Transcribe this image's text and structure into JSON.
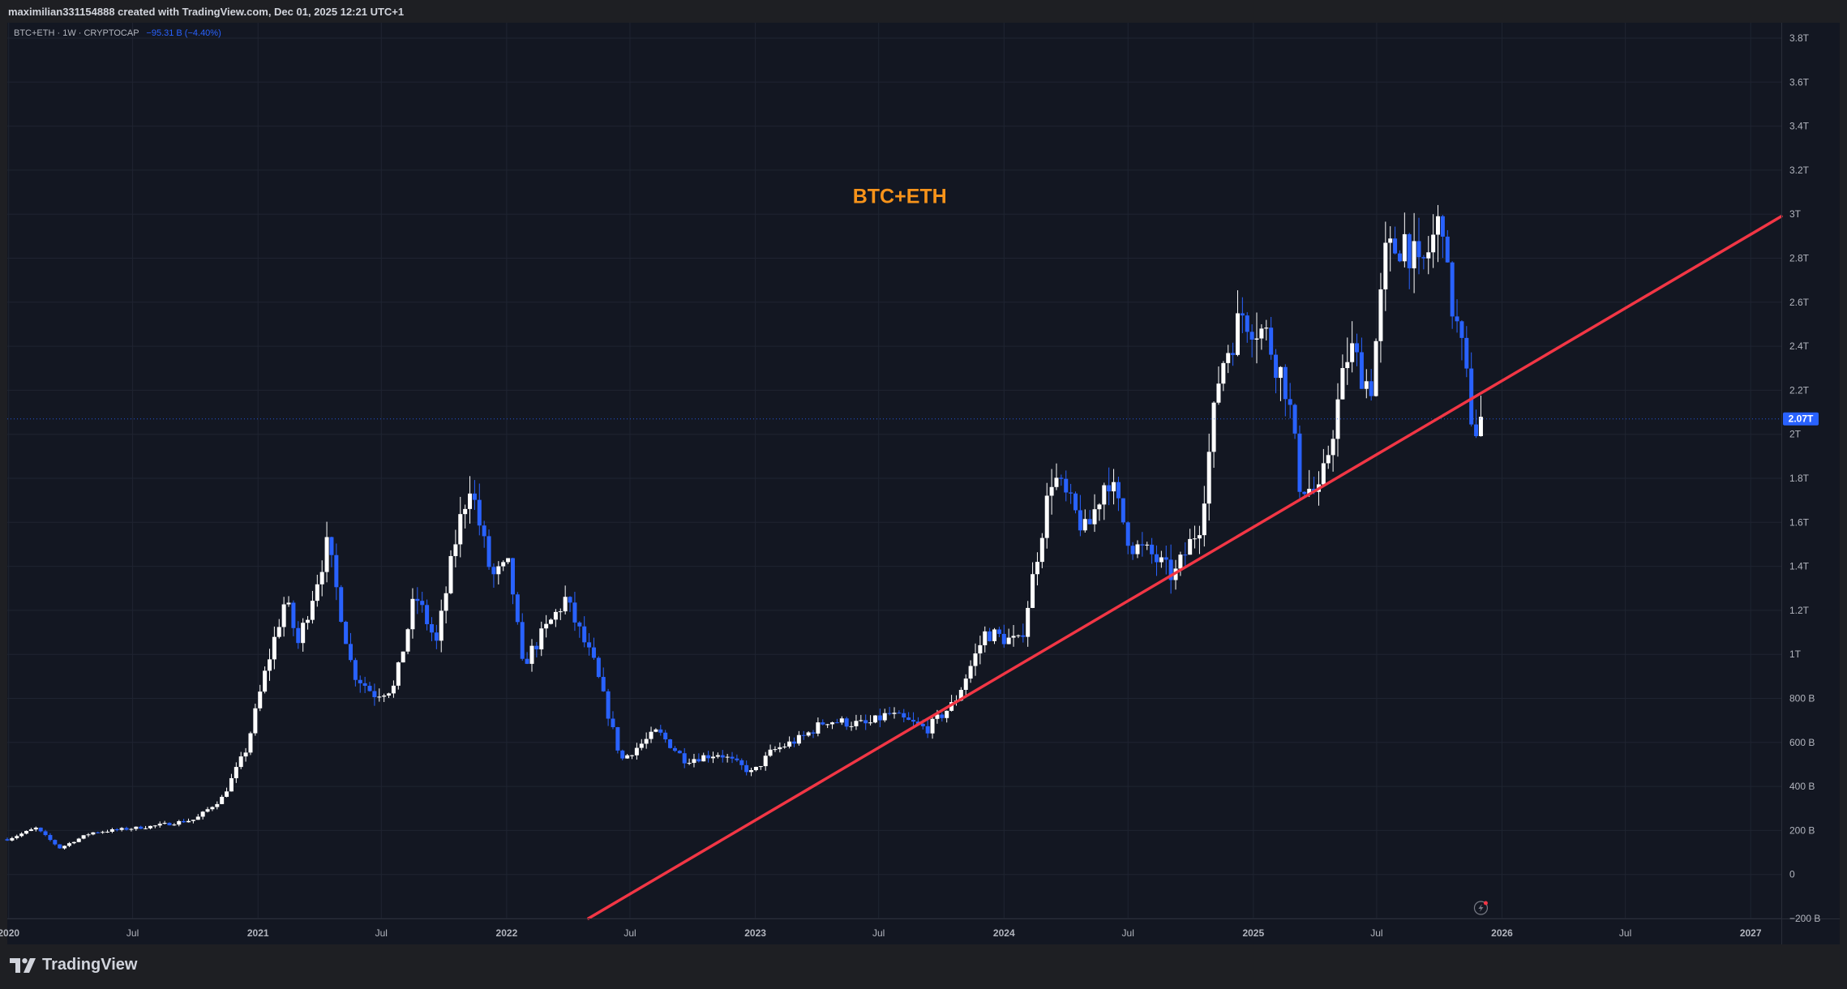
{
  "attribution": "maximilian331154888 created with TradingView.com, Dec 01, 2025 12:21 UTC+1",
  "legend": {
    "symbol": "BTC+ETH · 1W · CRYPTOCAP",
    "change": "−95.31 B (−4.40%)"
  },
  "brand": {
    "name": "TradingView"
  },
  "colors": {
    "background": "#131722",
    "frame": "#1e1f23",
    "grid": "#1f2431",
    "up": "#ffffff",
    "down": "#2962ff",
    "trendline": "#f23645",
    "annotation": "#f7931a",
    "price_tag": "#2962ff"
  },
  "chart_data": {
    "type": "candlestick",
    "title": "BTC+ETH",
    "interval": "1W",
    "source": "CRYPTOCAP",
    "y_unit": "USD",
    "ylim": [
      -200000000000.0,
      3870000000000.0
    ],
    "xlim": [
      "2019-12-30",
      "2027-02-15"
    ],
    "y_ticks": [
      {
        "value": -200000000000.0,
        "label": "−200 B"
      },
      {
        "value": 0,
        "label": "0"
      },
      {
        "value": 200000000000.0,
        "label": "200 B"
      },
      {
        "value": 400000000000.0,
        "label": "400 B"
      },
      {
        "value": 600000000000.0,
        "label": "600 B"
      },
      {
        "value": 800000000000.0,
        "label": "800 B"
      },
      {
        "value": 1000000000000.0,
        "label": "1T"
      },
      {
        "value": 1200000000000.0,
        "label": "1.2T"
      },
      {
        "value": 1400000000000.0,
        "label": "1.4T"
      },
      {
        "value": 1600000000000.0,
        "label": "1.6T"
      },
      {
        "value": 1800000000000.0,
        "label": "1.8T"
      },
      {
        "value": 2000000000000.0,
        "label": "2T"
      },
      {
        "value": 2200000000000.0,
        "label": "2.2T"
      },
      {
        "value": 2400000000000.0,
        "label": "2.4T"
      },
      {
        "value": 2600000000000.0,
        "label": "2.6T"
      },
      {
        "value": 2800000000000.0,
        "label": "2.8T"
      },
      {
        "value": 3000000000000.0,
        "label": "3T"
      },
      {
        "value": 3200000000000.0,
        "label": "3.2T"
      },
      {
        "value": 3400000000000.0,
        "label": "3.4T"
      },
      {
        "value": 3600000000000.0,
        "label": "3.6T"
      },
      {
        "value": 3800000000000.0,
        "label": "3.8T"
      }
    ],
    "x_ticks": [
      {
        "date": "2020-01-01",
        "label": "2020",
        "major": true
      },
      {
        "date": "2020-07-01",
        "label": "Jul",
        "major": false
      },
      {
        "date": "2021-01-01",
        "label": "2021",
        "major": true
      },
      {
        "date": "2021-07-01",
        "label": "Jul",
        "major": false
      },
      {
        "date": "2022-01-01",
        "label": "2022",
        "major": true
      },
      {
        "date": "2022-07-01",
        "label": "Jul",
        "major": false
      },
      {
        "date": "2023-01-01",
        "label": "2023",
        "major": true
      },
      {
        "date": "2023-07-01",
        "label": "Jul",
        "major": false
      },
      {
        "date": "2024-01-01",
        "label": "2024",
        "major": true
      },
      {
        "date": "2024-07-01",
        "label": "Jul",
        "major": false
      },
      {
        "date": "2025-01-01",
        "label": "2025",
        "major": true
      },
      {
        "date": "2025-07-01",
        "label": "Jul",
        "major": false
      },
      {
        "date": "2026-01-01",
        "label": "2026",
        "major": true
      },
      {
        "date": "2026-07-01",
        "label": "Jul",
        "major": false
      },
      {
        "date": "2027-01-01",
        "label": "2027",
        "major": true
      }
    ],
    "last_price": {
      "value": 2070000000000.0,
      "label": "2.07T"
    },
    "annotation": {
      "text": "BTC+ETH",
      "date": "2023-08-01",
      "value": 3050000000000.0
    },
    "trendline": {
      "from": {
        "date": "2022-05-01",
        "value": -200000000000.0
      },
      "to": {
        "date": "2027-02-15",
        "value": 2990000000000.0
      }
    },
    "close_path": [
      [
        "2019-12-30",
        160000000000.0
      ],
      [
        "2020-02-10",
        210000000000.0
      ],
      [
        "2020-03-16",
        120000000000.0
      ],
      [
        "2020-05-01",
        190000000000.0
      ],
      [
        "2020-08-01",
        220000000000.0
      ],
      [
        "2020-10-01",
        250000000000.0
      ],
      [
        "2020-11-10",
        350000000000.0
      ],
      [
        "2020-12-15",
        570000000000.0
      ],
      [
        "2021-01-10",
        900000000000.0
      ],
      [
        "2021-02-10",
        1250000000000.0
      ],
      [
        "2021-03-01",
        1050000000000.0
      ],
      [
        "2021-04-13",
        1500000000000.0
      ],
      [
        "2021-05-20",
        920000000000.0
      ],
      [
        "2021-06-20",
        820000000000.0
      ],
      [
        "2021-07-20",
        850000000000.0
      ],
      [
        "2021-08-20",
        1270000000000.0
      ],
      [
        "2021-09-20",
        1050000000000.0
      ],
      [
        "2021-10-20",
        1550000000000.0
      ],
      [
        "2021-11-08",
        1780000000000.0
      ],
      [
        "2021-12-10",
        1350000000000.0
      ],
      [
        "2022-01-05",
        1400000000000.0
      ],
      [
        "2022-01-24",
        950000000000.0
      ],
      [
        "2022-03-28",
        1250000000000.0
      ],
      [
        "2022-05-10",
        950000000000.0
      ],
      [
        "2022-06-18",
        520000000000.0
      ],
      [
        "2022-08-10",
        650000000000.0
      ],
      [
        "2022-09-20",
        520000000000.0
      ],
      [
        "2022-11-09",
        550000000000.0
      ],
      [
        "2022-12-28",
        460000000000.0
      ],
      [
        "2023-01-25",
        560000000000.0
      ],
      [
        "2023-03-10",
        620000000000.0
      ],
      [
        "2023-04-15",
        700000000000.0
      ],
      [
        "2023-06-15",
        680000000000.0
      ],
      [
        "2023-07-15",
        730000000000.0
      ],
      [
        "2023-09-10",
        660000000000.0
      ],
      [
        "2023-10-20",
        780000000000.0
      ],
      [
        "2023-12-05",
        1100000000000.0
      ],
      [
        "2024-01-25",
        1050000000000.0
      ],
      [
        "2024-03-12",
        1820000000000.0
      ],
      [
        "2024-05-01",
        1550000000000.0
      ],
      [
        "2024-06-01",
        1820000000000.0
      ],
      [
        "2024-07-05",
        1500000000000.0
      ],
      [
        "2024-08-05",
        1450000000000.0
      ],
      [
        "2024-09-06",
        1350000000000.0
      ],
      [
        "2024-10-15",
        1600000000000.0
      ],
      [
        "2024-11-13",
        2300000000000.0
      ],
      [
        "2024-12-16",
        2550000000000.0
      ],
      [
        "2025-01-20",
        2450000000000.0
      ],
      [
        "2025-02-20",
        2200000000000.0
      ],
      [
        "2025-03-10",
        1780000000000.0
      ],
      [
        "2025-04-08",
        1720000000000.0
      ],
      [
        "2025-05-22",
        2400000000000.0
      ],
      [
        "2025-06-22",
        2200000000000.0
      ],
      [
        "2025-07-14",
        2800000000000.0
      ],
      [
        "2025-08-13",
        2900000000000.0
      ],
      [
        "2025-09-01",
        2720000000000.0
      ],
      [
        "2025-10-06",
        3000000000000.0
      ],
      [
        "2025-10-11",
        2720000000000.0
      ],
      [
        "2025-11-05",
        2350000000000.0
      ],
      [
        "2025-11-21",
        2000000000000.0
      ],
      [
        "2025-12-01",
        2070000000000.0
      ]
    ]
  }
}
